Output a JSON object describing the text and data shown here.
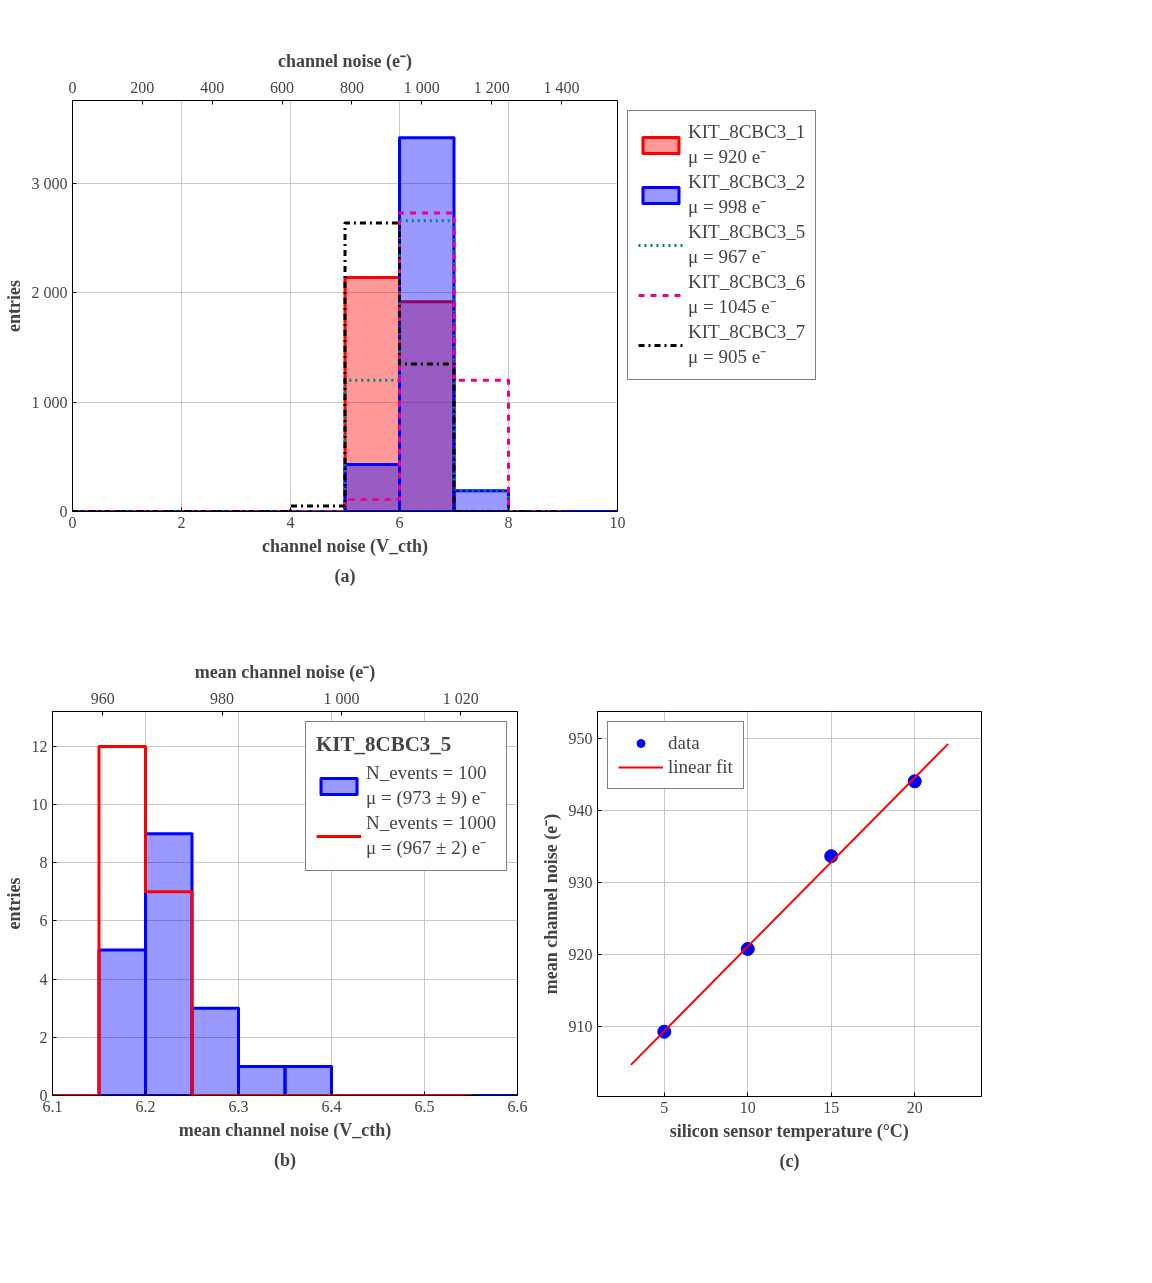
{
  "chart_data": [
    {
      "type": "histogram",
      "xlabel": "channel noise (V_cth)",
      "x2label": "channel noise (e⁻)",
      "ylabel": "entries",
      "bins": [
        0,
        1,
        2,
        3,
        4,
        5,
        6,
        7,
        8,
        9,
        10
      ],
      "series": [
        {
          "name": "KIT_8CBC3_1\nμ = 920 e⁻",
          "type": "histogram",
          "color": "#ff0000",
          "line_style": "solid",
          "values": [
            0,
            0,
            0,
            0,
            0,
            2140,
            1920,
            0,
            0,
            0
          ]
        },
        {
          "name": "KIT_8CBC3_2\nμ = 998 e⁻",
          "type": "histogram",
          "color": "#0000ff",
          "line_style": "solid",
          "values": [
            0,
            0,
            0,
            0,
            0,
            430,
            3420,
            190,
            0,
            0
          ]
        },
        {
          "name": "KIT_8CBC3_5\nμ = 967 e⁻",
          "type": "step",
          "x": [
            0,
            1,
            2,
            3,
            4,
            5,
            6,
            7,
            8,
            9
          ],
          "color": "#008080",
          "line_style": "dotted",
          "values": [
            0,
            0,
            0,
            0,
            0,
            1200,
            2660,
            190,
            0,
            0
          ]
        },
        {
          "name": "KIT_8CBC3_6\nμ = 1045 e⁻",
          "type": "step",
          "x": [
            0,
            1,
            2,
            3,
            4,
            5,
            6,
            7,
            8,
            9
          ],
          "color": "#ec008c",
          "line_style": "dashed",
          "values": [
            0,
            0,
            0,
            0,
            0,
            110,
            2730,
            1200,
            0,
            0
          ]
        },
        {
          "name": "KIT_8CBC3_7\nμ = 905 e⁻",
          "type": "step",
          "x": [
            0,
            1,
            2,
            3,
            4,
            5,
            6,
            7,
            8,
            9
          ],
          "color": "#000000",
          "line_style": "dashdot",
          "values": [
            0,
            0,
            0,
            0,
            50,
            2640,
            1350,
            0,
            0,
            0
          ]
        }
      ],
      "xlim": [
        0,
        10
      ],
      "xticks": [
        0,
        2,
        4,
        6,
        8,
        10
      ],
      "x2lim": [
        0,
        1560
      ],
      "x2ticks": [
        0,
        200,
        400,
        600,
        800,
        {
          "value": 1000,
          "label": "1 000"
        },
        {
          "value": 1200,
          "label": "1 200"
        },
        {
          "value": 1400,
          "label": "1 400"
        }
      ],
      "ylim": [
        0,
        3760
      ],
      "yticks": [
        0,
        {
          "value": 1000,
          "label": "1 000"
        },
        {
          "value": 2000,
          "label": "2 000"
        },
        {
          "value": 3000,
          "label": "3 000"
        }
      ],
      "grid": true,
      "legend": "right",
      "annotations": [
        "(a)"
      ]
    },
    {
      "type": "histogram",
      "xlabel": "mean channel noise (V_cth)",
      "x2label": "mean channel noise (e⁻)",
      "ylabel": "entries",
      "legend_title": "KIT_8CBC3_5",
      "bins": [
        6.1,
        6.15,
        6.2,
        6.25,
        6.3,
        6.35,
        6.4,
        6.45,
        6.5,
        6.55,
        6.6
      ],
      "series": [
        {
          "name": "N_events = 100\nμ = (973 ± 9) e⁻",
          "type": "histogram",
          "color": "#0000ff",
          "values": [
            0,
            5,
            9,
            3,
            1,
            1,
            0,
            0,
            0,
            0
          ]
        },
        {
          "name": "N_events = 1000\nμ = (967 ± 2) e⁻",
          "type": "step",
          "x": [
            6.1,
            6.15,
            6.2,
            6.25,
            6.3,
            6.35,
            6.4,
            6.45,
            6.5,
            6.55
          ],
          "color": "#ff0000",
          "values": [
            0,
            12,
            7,
            0,
            0,
            0,
            0,
            0,
            0,
            0
          ]
        }
      ],
      "xlim": [
        6.1,
        6.6
      ],
      "xticks": [
        6.1,
        6.2,
        6.3,
        6.4,
        6.5,
        6.6
      ],
      "x2lim": [
        951.6,
        1029.5
      ],
      "x2ticks": [
        960,
        980,
        {
          "value": 1000,
          "label": "1 000"
        },
        {
          "value": 1020,
          "label": "1 020"
        }
      ],
      "ylim": [
        0,
        13.2
      ],
      "yticks": [
        0,
        2,
        4,
        6,
        8,
        10,
        12
      ],
      "grid": true,
      "legend": "top right",
      "annotations": [
        "(b)"
      ]
    },
    {
      "type": "scatter",
      "xlabel": "silicon sensor temperature (°C)",
      "ylabel": "mean channel noise (e⁻)",
      "marker": "circle",
      "series": [
        {
          "name": "data",
          "color": "#0000ff",
          "x": [
            5,
            10,
            15,
            20
          ],
          "values": [
            909.3,
            920.8,
            933.7,
            944.1
          ]
        },
        {
          "name": "linear fit",
          "type": "line",
          "marker": "none",
          "color": "#ff0000",
          "x": [
            3,
            22
          ],
          "values": [
            904.7,
            949.3
          ]
        }
      ],
      "xlim": [
        1,
        24
      ],
      "xticks": [
        5,
        10,
        15,
        20
      ],
      "ylim": [
        900.3,
        953.8
      ],
      "yticks": [
        910,
        920,
        930,
        940,
        950
      ],
      "grid": true,
      "legend": "top left",
      "annotations": [
        "(c)"
      ]
    }
  ]
}
